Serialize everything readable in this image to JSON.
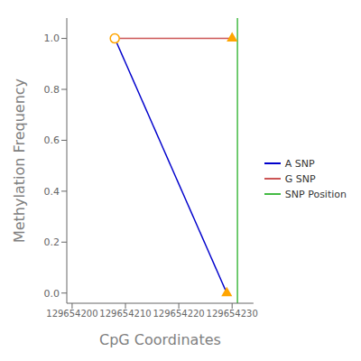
{
  "chart_data": {
    "type": "line",
    "xlabel": "CpG Coordinates",
    "ylabel": "Methylation Frequency",
    "series": [
      {
        "name": "A SNP",
        "type": "line",
        "color": "#0000CC",
        "x": [
          129654208,
          129654229
        ],
        "values": [
          1.0,
          0.0
        ]
      },
      {
        "name": "G SNP",
        "type": "line",
        "color": "#CC5555",
        "x": [
          129654208,
          129654230
        ],
        "values": [
          1.0,
          1.0
        ]
      },
      {
        "name": "SNP Position",
        "type": "vline",
        "color": "#44BB44",
        "x": [
          129654231
        ]
      },
      {
        "type": "scatter",
        "marker": "triangle",
        "color": "#FFA500",
        "x": [
          129654229,
          129654230
        ],
        "values": [
          0.0,
          1.0
        ]
      },
      {
        "type": "scatter",
        "marker": "open_circle",
        "color": "#FFA500",
        "x": [
          129654208
        ],
        "values": [
          1.0
        ]
      }
    ],
    "xlim": [
      129654199,
      129654234
    ],
    "ylim": [
      -0.04,
      1.08
    ],
    "xticks": [
      129654200,
      129654210,
      129654220,
      129654230
    ],
    "yticks": [
      {
        "value": 0,
        "label": "0.0"
      },
      0.2,
      0.4,
      0.6,
      0.8,
      {
        "value": 1,
        "label": "1.0"
      }
    ],
    "grid": false,
    "legend": "right"
  }
}
